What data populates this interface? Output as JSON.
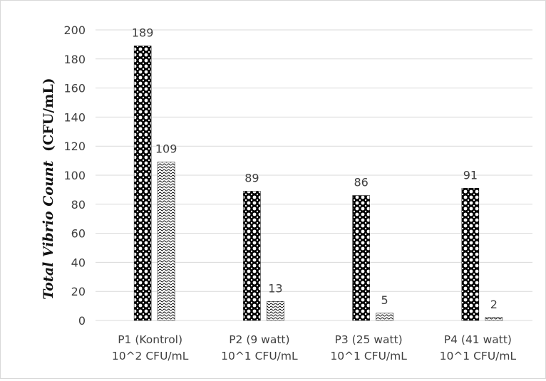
{
  "chart_data": {
    "type": "bar",
    "categories": [
      [
        "P1 (Kontrol)",
        "10^2 CFU/mL"
      ],
      [
        "P2 (9 watt)",
        "10^1 CFU/mL"
      ],
      [
        "P3 (25 watt)",
        "10^1 CFU/mL"
      ],
      [
        "P4 (41 watt)",
        "10^1 CFU/mL"
      ]
    ],
    "series": [
      {
        "values": [
          189,
          89,
          86,
          91
        ],
        "pattern": "dense-dots"
      },
      {
        "values": [
          109,
          13,
          5,
          2
        ],
        "pattern": "waves"
      }
    ],
    "ylabel_italic": "Total Vibrio Count",
    "ylabel_unit": "(CFU/mL)",
    "ylim": [
      0,
      200
    ],
    "yticks": [
      0,
      20,
      40,
      60,
      80,
      100,
      120,
      140,
      160,
      180,
      200
    ],
    "grid": true,
    "colors": {
      "bar": "#000000",
      "grid": "#d9d9d9",
      "text": "#404040"
    }
  }
}
